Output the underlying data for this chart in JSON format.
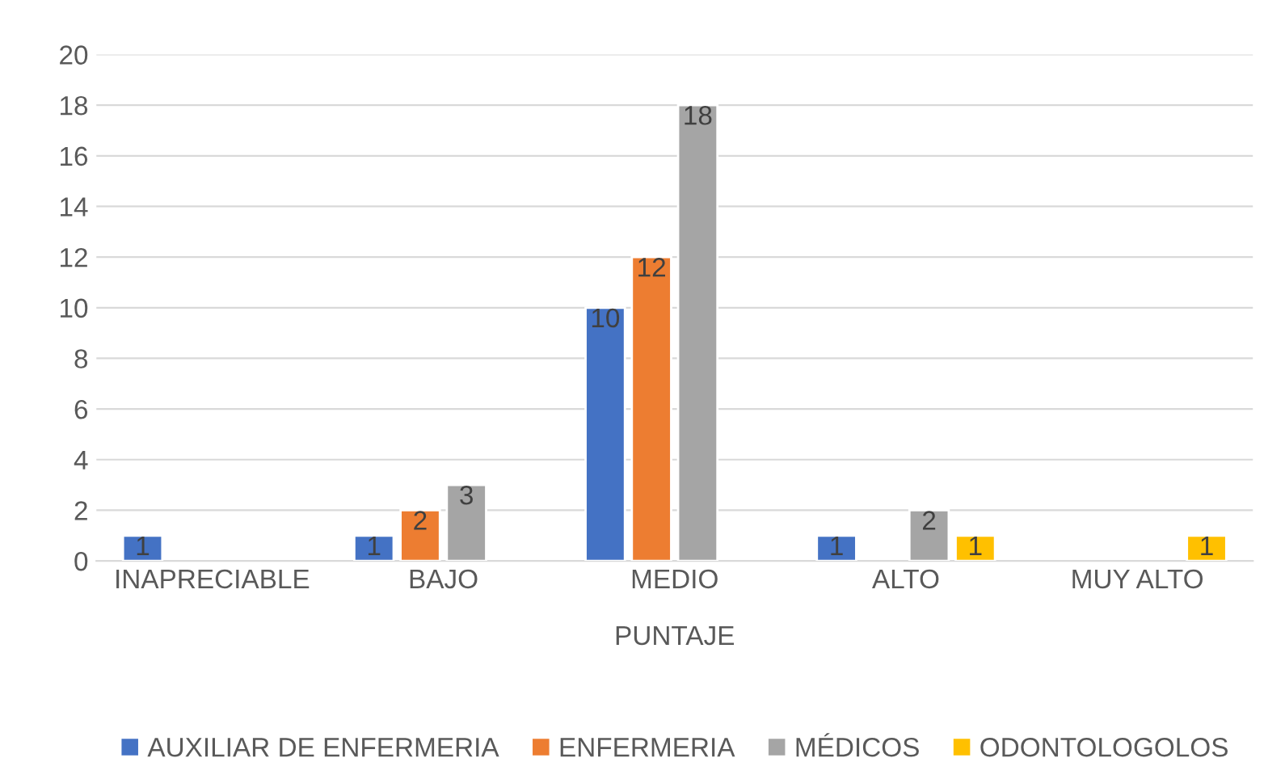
{
  "chart_data": {
    "type": "bar",
    "xlabel": "PUNTAJE",
    "categories": [
      "INAPRECIABLE",
      "BAJO",
      "MEDIO",
      "ALTO",
      "MUY ALTO"
    ],
    "series": [
      {
        "name": "AUXILIAR DE ENFERMERIA",
        "color": "#4472c4",
        "values": [
          1,
          1,
          10,
          1,
          null
        ]
      },
      {
        "name": "ENFERMERIA",
        "color": "#ed7d31",
        "values": [
          null,
          2,
          12,
          null,
          null
        ]
      },
      {
        "name": "MÉDICOS",
        "color": "#a5a5a5",
        "values": [
          null,
          3,
          18,
          2,
          null
        ]
      },
      {
        "name": "ODONTOLOGOLOS",
        "color": "#ffc000",
        "values": [
          null,
          null,
          null,
          1,
          1
        ]
      }
    ],
    "ylim": [
      0,
      20
    ],
    "yticks": [
      0,
      2,
      4,
      6,
      8,
      10,
      12,
      14,
      16,
      18,
      20
    ],
    "grid": "y",
    "legend": "bottom",
    "data_labels": true
  }
}
